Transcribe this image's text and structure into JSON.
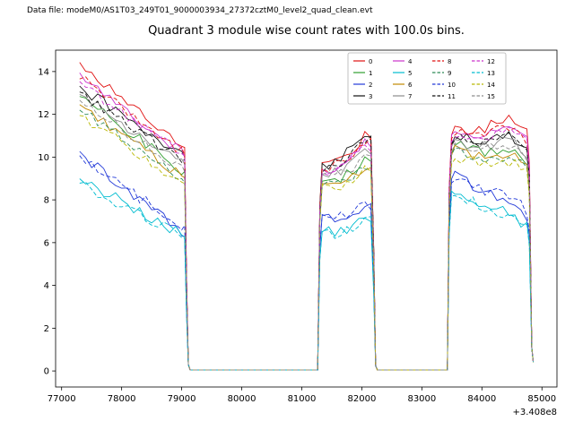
{
  "header": {
    "data_file": "Data file: modeM0/AS1T03_249T01_9000003934_27372cztM0_level2_quad_clean.evt"
  },
  "chart_data": {
    "type": "line",
    "title": "Quadrant 3 module wise count rates with 100.0s bins.",
    "xlabel": "",
    "ylabel": "",
    "x_offset_label": "+3.408e8",
    "xlim": [
      76900,
      85250
    ],
    "ylim": [
      -0.75,
      15.0
    ],
    "x_ticks": [
      77000,
      78000,
      79000,
      80000,
      81000,
      82000,
      83000,
      84000,
      85000
    ],
    "y_ticks": [
      0,
      2,
      4,
      6,
      8,
      10,
      12,
      14
    ],
    "grid": false,
    "legend_position": "upper center-right, 4 columns",
    "bin_seconds": 100.0,
    "data_gaps_x": [
      [
        79140,
        81260
      ],
      [
        82260,
        83420
      ]
    ],
    "jitter": 0.26,
    "series": [
      {
        "label": "0",
        "color": "#e01010",
        "dashed": false,
        "anchors": {
          "s0": 14.4,
          "sEnd": 10.4,
          "b0": 9.7,
          "bPeak": 11.0,
          "c0": 11.4,
          "cEnd": 10.8,
          "hump": 0.9
        }
      },
      {
        "label": "1",
        "color": "#2e9e2e",
        "dashed": false,
        "anchors": {
          "s0": 12.9,
          "sEnd": 9.3,
          "b0": 9.0,
          "bPeak": 9.8,
          "c0": 10.6,
          "cEnd": 9.6,
          "hump": 0.5
        }
      },
      {
        "label": "2",
        "color": "#2038d8",
        "dashed": false,
        "anchors": {
          "s0": 10.2,
          "sEnd": 6.4,
          "b0": 7.2,
          "bPeak": 7.6,
          "c0": 9.3,
          "cEnd": 7.1,
          "hump": 0.3
        }
      },
      {
        "label": "3",
        "color": "#101010",
        "dashed": false,
        "anchors": {
          "s0": 13.3,
          "sEnd": 10.0,
          "b0": 9.6,
          "bPeak": 11.1,
          "c0": 11.0,
          "cEnd": 10.2,
          "hump": 0.6
        }
      },
      {
        "label": "4",
        "color": "#cc33cc",
        "dashed": false,
        "anchors": {
          "s0": 13.9,
          "sEnd": 10.1,
          "b0": 9.4,
          "bPeak": 10.6,
          "c0": 11.3,
          "cEnd": 10.6,
          "hump": 0.8
        }
      },
      {
        "label": "5",
        "color": "#00bcd0",
        "dashed": false,
        "anchors": {
          "s0": 9.0,
          "sEnd": 6.3,
          "b0": 6.6,
          "bPeak": 7.1,
          "c0": 8.6,
          "cEnd": 6.6,
          "hump": 0.3
        }
      },
      {
        "label": "6",
        "color": "#c08800",
        "dashed": false,
        "anchors": {
          "s0": 12.5,
          "sEnd": 9.0,
          "b0": 8.8,
          "bPeak": 9.6,
          "c0": 10.4,
          "cEnd": 9.3,
          "hump": 0.5
        }
      },
      {
        "label": "7",
        "color": "#8c8c8c",
        "dashed": false,
        "anchors": {
          "s0": 12.9,
          "sEnd": 9.6,
          "b0": 9.2,
          "bPeak": 10.2,
          "c0": 10.8,
          "cEnd": 9.9,
          "hump": 0.6
        }
      },
      {
        "label": "8",
        "color": "#e01010",
        "dashed": true,
        "anchors": {
          "s0": 13.7,
          "sEnd": 10.2,
          "b0": 9.5,
          "bPeak": 10.7,
          "c0": 11.2,
          "cEnd": 10.4,
          "hump": 0.7
        }
      },
      {
        "label": "9",
        "color": "#2e8b57",
        "dashed": true,
        "anchors": {
          "s0": 12.2,
          "sEnd": 8.9,
          "b0": 8.7,
          "bPeak": 9.5,
          "c0": 10.3,
          "cEnd": 9.2,
          "hump": 0.5
        }
      },
      {
        "label": "10",
        "color": "#2038d8",
        "dashed": true,
        "anchors": {
          "s0": 10.0,
          "sEnd": 6.7,
          "b0": 7.3,
          "bPeak": 7.8,
          "c0": 9.1,
          "cEnd": 7.3,
          "hump": 0.4
        }
      },
      {
        "label": "11",
        "color": "#101010",
        "dashed": true,
        "anchors": {
          "s0": 13.0,
          "sEnd": 9.8,
          "b0": 9.4,
          "bPeak": 10.8,
          "c0": 10.9,
          "cEnd": 10.1,
          "hump": 0.7
        }
      },
      {
        "label": "12",
        "color": "#cc33cc",
        "dashed": true,
        "anchors": {
          "s0": 13.5,
          "sEnd": 10.0,
          "b0": 9.3,
          "bPeak": 10.5,
          "c0": 11.1,
          "cEnd": 10.3,
          "hump": 0.8
        }
      },
      {
        "label": "13",
        "color": "#00bcd0",
        "dashed": true,
        "anchors": {
          "s0": 8.8,
          "sEnd": 6.2,
          "b0": 6.5,
          "bPeak": 7.0,
          "c0": 8.4,
          "cEnd": 6.5,
          "hump": 0.3
        }
      },
      {
        "label": "14",
        "color": "#b8b800",
        "dashed": true,
        "anchors": {
          "s0": 12.0,
          "sEnd": 8.7,
          "b0": 8.6,
          "bPeak": 9.4,
          "c0": 10.1,
          "cEnd": 9.0,
          "hump": 0.5
        }
      },
      {
        "label": "15",
        "color": "#8c8c8c",
        "dashed": true,
        "anchors": {
          "s0": 12.6,
          "sEnd": 9.4,
          "b0": 9.1,
          "bPeak": 10.0,
          "c0": 10.6,
          "cEnd": 9.7,
          "hump": 0.6
        }
      }
    ]
  }
}
